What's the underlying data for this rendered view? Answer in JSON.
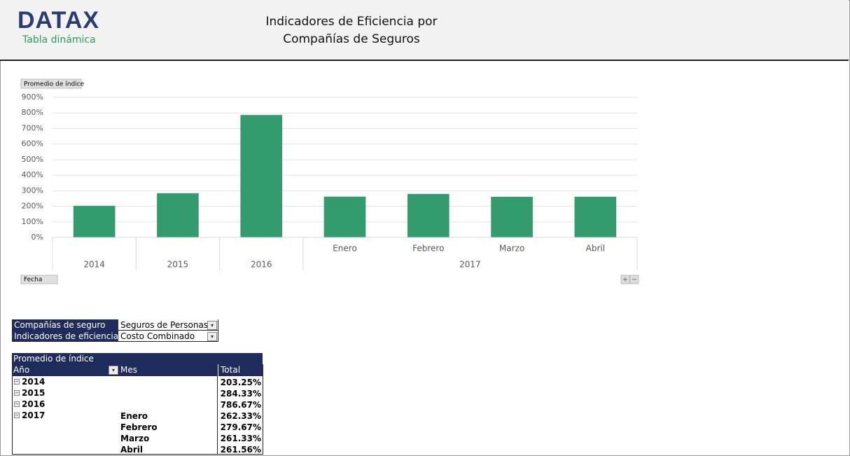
{
  "header": {
    "logo": "DATAX",
    "logo_subtitle": "Tabla dinámica",
    "title_lines": [
      "Indicadores de Eficiencia por",
      "Compañías de Seguros"
    ]
  },
  "chart_data": {
    "type": "bar",
    "field_button": "Promedio de índice",
    "axis_field_button": "Fecha",
    "zoom_buttons": [
      "+",
      "−"
    ],
    "color": "#339b6d",
    "grid": true,
    "ylim": [
      0,
      900
    ],
    "yticks": [
      {
        "value": 0,
        "label": "0%"
      },
      {
        "value": 100,
        "label": "100%"
      },
      {
        "value": 200,
        "label": "200%"
      },
      {
        "value": 300,
        "label": "300%"
      },
      {
        "value": 400,
        "label": "400%"
      },
      {
        "value": 500,
        "label": "500%"
      },
      {
        "value": 600,
        "label": "600%"
      },
      {
        "value": 700,
        "label": "700%"
      },
      {
        "value": 800,
        "label": "800%"
      },
      {
        "value": 900,
        "label": "900%"
      }
    ],
    "groups": [
      {
        "label": "2014",
        "categories": [
          null
        ],
        "values": [
          203.25
        ]
      },
      {
        "label": "2015",
        "categories": [
          null
        ],
        "values": [
          284.33
        ]
      },
      {
        "label": "2016",
        "categories": [
          null
        ],
        "values": [
          786.67
        ]
      },
      {
        "label": "2017",
        "categories": [
          "Enero",
          "Febrero",
          "Marzo",
          "Abril"
        ],
        "values": [
          262.33,
          279.67,
          261.33,
          261.56
        ]
      }
    ]
  },
  "filters": [
    [
      "Compañías de seguro",
      "Seguros de Personas"
    ],
    [
      "Indicadores de eficiencia",
      "Costo Combinado"
    ]
  ],
  "pivot": {
    "value_header": "Promedio de índice",
    "columns": [
      "Año",
      "Mes",
      "Total"
    ],
    "rows": [
      {
        "year": "2014",
        "month": null,
        "total": "203.25%"
      },
      {
        "year": "2015",
        "month": null,
        "total": "284.33%"
      },
      {
        "year": "2016",
        "month": null,
        "total": "786.67%"
      },
      {
        "year": "2017",
        "month": "Enero",
        "total": "262.33%"
      },
      {
        "year": null,
        "month": "Febrero",
        "total": "279.67%"
      },
      {
        "year": null,
        "month": "Marzo",
        "total": "261.33%"
      },
      {
        "year": null,
        "month": "Abril",
        "total": "261.56%"
      }
    ]
  }
}
